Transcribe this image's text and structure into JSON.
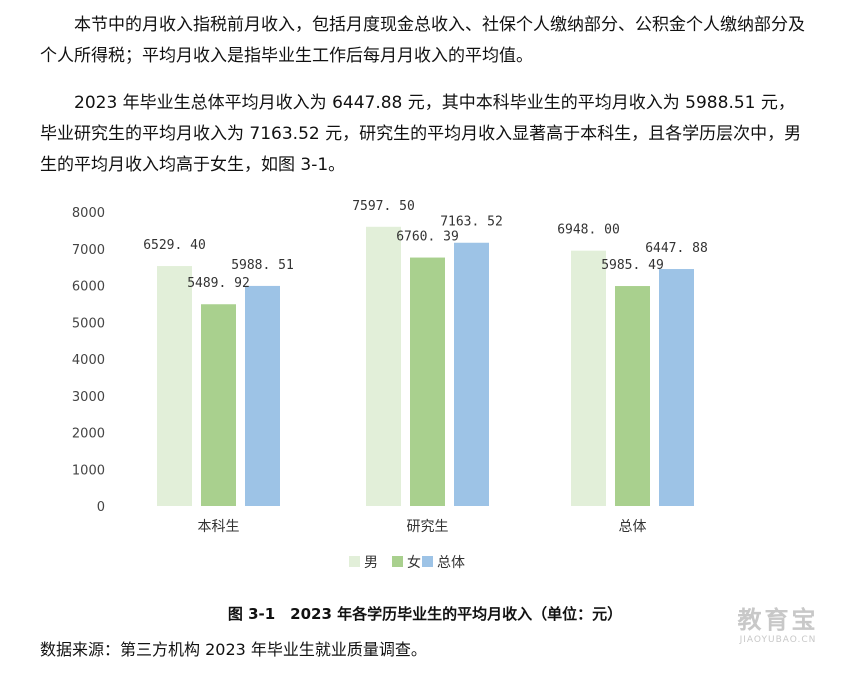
{
  "text": {
    "paragraph1": "本节中的月收入指税前月收入，包括月度现金总收入、社保个人缴纳部分、公积金个人缴纳部分及个人所得税；平均月收入是指毕业生工作后每月月收入的平均值。",
    "paragraph2": "2023 年毕业生总体平均月收入为 6447.88 元，其中本科毕业生的平均月收入为 5988.51 元，毕业研究生的平均月收入为 7163.52 元，研究生的平均月收入显著高于本科生，且各学历层次中，男生的平均月收入均高于女生，如图 3-1。",
    "caption": "图 3-1　2023 年各学历毕业生的平均月收入（单位：元）",
    "source": "数据来源：第三方机构 2023 年毕业生就业质量调查。"
  },
  "chart_data": {
    "type": "bar",
    "categories": [
      "本科生",
      "研究生",
      "总体"
    ],
    "series": [
      {
        "name": "男",
        "values": [
          6529.4,
          7597.5,
          6948.0
        ],
        "labels": [
          "6529. 40",
          "7597. 50",
          "6948. 00"
        ],
        "color": "#e2efd9"
      },
      {
        "name": "女",
        "values": [
          5489.92,
          6760.39,
          5985.49
        ],
        "labels": [
          "5489. 92",
          "6760. 39",
          "5985. 49"
        ],
        "color": "#a9d08e"
      },
      {
        "name": "总体",
        "values": [
          5988.51,
          7163.52,
          6447.88
        ],
        "labels": [
          "5988. 51",
          "7163. 52",
          "6447. 88"
        ],
        "color": "#9dc3e6"
      }
    ],
    "ylim": [
      0,
      8000
    ],
    "yticks": [
      "0",
      "1000",
      "2000",
      "3000",
      "4000",
      "5000",
      "6000",
      "7000",
      "8000"
    ],
    "grid": false,
    "legend_position": "bottom"
  },
  "watermark": {
    "main": "教育宝",
    "sub": "JIAOYUBAO.CN"
  }
}
